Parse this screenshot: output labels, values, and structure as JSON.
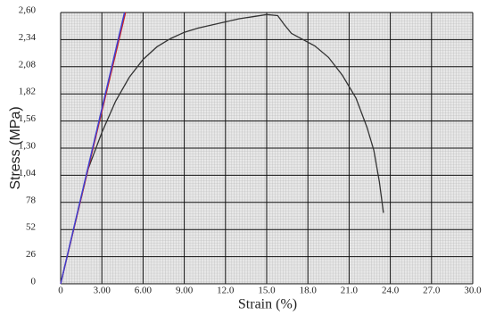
{
  "chart_data": {
    "type": "line",
    "xlabel": "Strain (%)",
    "ylabel": "Stress (MPa)",
    "xlim": [
      0,
      30
    ],
    "ylim": [
      0,
      2.6
    ],
    "xticks": [
      0,
      {
        "value": 3,
        "label": "3.00"
      },
      {
        "value": 6,
        "label": "6.00"
      },
      {
        "value": 9,
        "label": "9.00"
      },
      {
        "value": 12,
        "label": "12.0"
      },
      {
        "value": 15,
        "label": "15.0"
      },
      {
        "value": 18,
        "label": "18.0"
      },
      {
        "value": 21,
        "label": "21.0"
      },
      {
        "value": 24,
        "label": "24.0"
      },
      {
        "value": 27,
        "label": "27.0"
      },
      {
        "value": 30,
        "label": "30.0"
      }
    ],
    "yticks": [
      0,
      {
        "value": 0.26,
        "label": "26"
      },
      {
        "value": 0.52,
        "label": "52"
      },
      {
        "value": 0.78,
        "label": "78"
      },
      {
        "value": 1.04,
        "label": "1,04"
      },
      {
        "value": 1.3,
        "label": "1,30"
      },
      {
        "value": 1.56,
        "label": "1,56"
      },
      {
        "value": 1.82,
        "label": "1,82"
      },
      {
        "value": 2.08,
        "label": "2,08"
      },
      {
        "value": 2.34,
        "label": "2,34"
      },
      {
        "value": 2.6,
        "label": "2,60"
      }
    ],
    "grid": true,
    "series": [
      {
        "color": "#333333",
        "x": [
          0,
          1,
          2,
          3,
          4,
          5,
          6,
          7,
          8,
          9,
          10,
          11,
          12,
          13,
          14,
          15,
          15.8,
          16.3,
          16.8,
          17.5,
          18.5,
          19.5,
          20.5,
          21.5,
          22.3,
          22.8,
          23.2,
          23.5
        ],
        "values": [
          0,
          0.55,
          1.1,
          1.45,
          1.75,
          1.98,
          2.15,
          2.27,
          2.35,
          2.41,
          2.45,
          2.48,
          2.51,
          2.54,
          2.56,
          2.58,
          2.57,
          2.48,
          2.4,
          2.35,
          2.28,
          2.17,
          2.0,
          1.78,
          1.5,
          1.28,
          0.98,
          0.68
        ]
      },
      {
        "color": "#d02020",
        "x": [
          0,
          4.72
        ],
        "values": [
          0,
          2.6
        ]
      },
      {
        "color": "#4040d0",
        "x": [
          0,
          4.65
        ],
        "values": [
          0,
          2.6
        ]
      }
    ]
  }
}
